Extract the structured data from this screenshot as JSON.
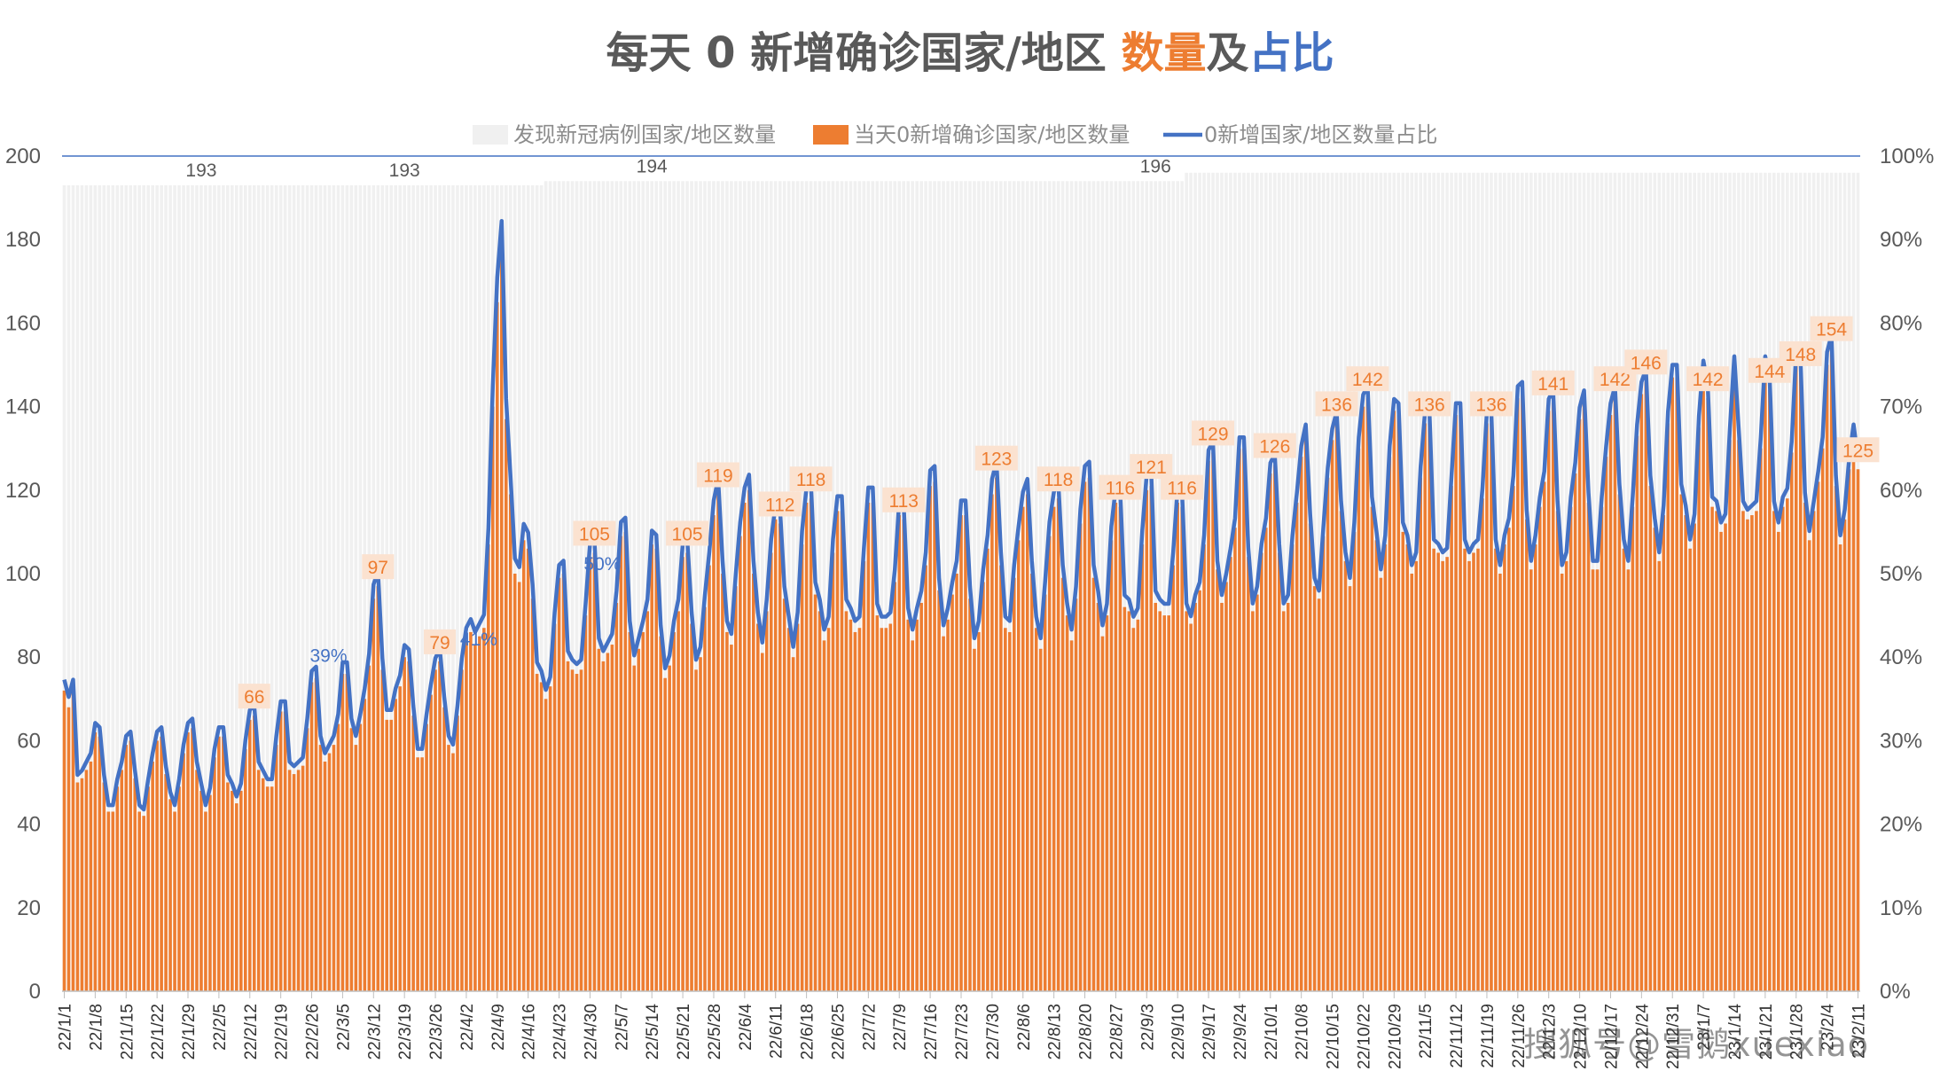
{
  "watermark": "搜狐号@雪鹅xuexiao",
  "colors": {
    "gray_bar": "#f0f0f0",
    "orange_bar": "#ed7d31",
    "line": "#4472c4",
    "title_main": "#595959",
    "title_orange": "#ed7d31",
    "title_blue": "#4472c4",
    "axis_text": "#595959"
  },
  "chart_data": {
    "type": "bar",
    "title_parts": [
      {
        "text": "每天 0 新增确诊国家/地区 ",
        "color": "#595959"
      },
      {
        "text": "数量",
        "color": "#ed7d31"
      },
      {
        "text": "及",
        "color": "#595959"
      },
      {
        "text": "占比",
        "color": "#4472c4"
      }
    ],
    "legend_position": "top",
    "grid": false,
    "y_left": {
      "min": 0,
      "max": 200,
      "ticks": [
        "0",
        "20",
        "40",
        "60",
        "80",
        "100",
        "120",
        "140",
        "160",
        "180",
        "200"
      ]
    },
    "y_right": {
      "min": 0,
      "max": 1,
      "ticks": [
        "0%",
        "10%",
        "20%",
        "30%",
        "40%",
        "50%",
        "60%",
        "70%",
        "80%",
        "90%",
        "100%"
      ]
    },
    "x_start": "2022-01-01",
    "x_end": "2023-01-01",
    "x_tick_labels": [
      "22/1/1",
      "22/1/8",
      "22/1/15",
      "22/1/22",
      "22/1/29",
      "22/2/5",
      "22/2/12",
      "22/2/19",
      "22/2/26",
      "22/3/5",
      "22/3/12",
      "22/3/19",
      "22/3/26",
      "22/4/2",
      "22/4/9",
      "22/4/16",
      "22/4/23",
      "22/4/30",
      "22/5/7",
      "22/5/14",
      "22/5/21",
      "22/5/28",
      "22/6/4",
      "22/6/11",
      "22/6/18",
      "22/6/25",
      "22/7/2",
      "22/7/9",
      "22/7/16",
      "22/7/23",
      "22/7/30",
      "22/8/6",
      "22/8/13",
      "22/8/20",
      "22/8/27",
      "22/9/3",
      "22/9/10",
      "22/9/17",
      "22/9/24",
      "22/10/1",
      "22/10/8",
      "22/10/15",
      "22/10/22",
      "22/10/29",
      "22/11/5",
      "22/11/12",
      "22/11/19",
      "22/11/26",
      "22/12/3",
      "22/12/10",
      "22/12/17",
      "22/12/24",
      "22/12/31",
      "23/1/7",
      "23/1/14",
      "23/1/21",
      "23/1/28",
      "23/2/4",
      "23/2/11"
    ],
    "series": [
      {
        "name": "发现新冠病例国家/地区数量",
        "kind": "bar",
        "color": "#f0f0f0",
        "segments": [
          {
            "from": "2022-01-01",
            "to": "2022-02-28",
            "value": 193
          },
          {
            "from": "2022-03-01",
            "to": "2022-04-19",
            "value": 193
          },
          {
            "from": "2022-04-20",
            "to": "2022-09-11",
            "value": 194
          },
          {
            "from": "2022-09-12",
            "to": "2023-01-01",
            "value": 196
          }
        ],
        "labels": [
          {
            "date": "2022-02-01",
            "text": "193"
          },
          {
            "date": "2022-03-19",
            "text": "193"
          },
          {
            "date": "2022-05-14",
            "text": "194"
          },
          {
            "date": "2022-09-05",
            "text": "196"
          }
        ]
      },
      {
        "name": "当天0新增确诊国家/地区数量",
        "kind": "bar",
        "color": "#ed7d31",
        "weekly_peaks": [
          {
            "date": "2022-01-03",
            "value": 72
          },
          {
            "date": "2022-01-09",
            "value": 61
          },
          {
            "date": "2022-01-16",
            "value": 60
          },
          {
            "date": "2022-01-23",
            "value": 61
          },
          {
            "date": "2022-01-30",
            "value": 63
          },
          {
            "date": "2022-02-06",
            "value": 61
          },
          {
            "date": "2022-02-13",
            "value": 66
          },
          {
            "date": "2022-02-20",
            "value": 67
          },
          {
            "date": "2022-02-27",
            "value": 75
          },
          {
            "date": "2022-03-06",
            "value": 76
          },
          {
            "date": "2022-03-13",
            "value": 97
          },
          {
            "date": "2022-03-20",
            "value": 79
          },
          {
            "date": "2022-03-27",
            "value": 79
          },
          {
            "date": "2022-04-03",
            "value": 86
          },
          {
            "date": "2022-04-10",
            "value": 178
          },
          {
            "date": "2022-04-17",
            "value": 94
          },
          {
            "date": "2022-04-24",
            "value": 100
          },
          {
            "date": "2022-05-01",
            "value": 105
          },
          {
            "date": "2022-05-08",
            "value": 110
          },
          {
            "date": "2022-05-15",
            "value": 106
          },
          {
            "date": "2022-05-22",
            "value": 105
          },
          {
            "date": "2022-05-29",
            "value": 119
          },
          {
            "date": "2022-06-05",
            "value": 120
          },
          {
            "date": "2022-06-12",
            "value": 112
          },
          {
            "date": "2022-06-19",
            "value": 118
          },
          {
            "date": "2022-06-26",
            "value": 115
          },
          {
            "date": "2022-07-03",
            "value": 117
          },
          {
            "date": "2022-07-10",
            "value": 113
          },
          {
            "date": "2022-07-17",
            "value": 122
          },
          {
            "date": "2022-07-24",
            "value": 114
          },
          {
            "date": "2022-07-31",
            "value": 123
          },
          {
            "date": "2022-08-07",
            "value": 119
          },
          {
            "date": "2022-08-14",
            "value": 118
          },
          {
            "date": "2022-08-21",
            "value": 123
          },
          {
            "date": "2022-08-28",
            "value": 116
          },
          {
            "date": "2022-09-04",
            "value": 121
          },
          {
            "date": "2022-09-11",
            "value": 116
          },
          {
            "date": "2022-09-18",
            "value": 129
          },
          {
            "date": "2022-09-25",
            "value": 130
          },
          {
            "date": "2022-10-02",
            "value": 126
          },
          {
            "date": "2022-10-09",
            "value": 133
          },
          {
            "date": "2022-10-16",
            "value": 136
          },
          {
            "date": "2022-10-23",
            "value": 142
          },
          {
            "date": "2022-10-30",
            "value": 138
          },
          {
            "date": "2022-11-06",
            "value": 136
          },
          {
            "date": "2022-11-13",
            "value": 138
          },
          {
            "date": "2022-11-20",
            "value": 136
          },
          {
            "date": "2022-11-27",
            "value": 143
          },
          {
            "date": "2022-12-04",
            "value": 141
          },
          {
            "date": "2022-12-11",
            "value": 141
          },
          {
            "date": "2022-12-18",
            "value": 142
          },
          {
            "date": "2022-12-25",
            "value": 146
          },
          {
            "date": "2023-01-01",
            "value": 147
          }
        ],
        "labels": [
          {
            "date": "2022-02-13",
            "text": "66"
          },
          {
            "date": "2022-03-13",
            "text": "97"
          },
          {
            "date": "2022-03-27",
            "text": "79"
          },
          {
            "date": "2022-05-01",
            "text": "105"
          },
          {
            "date": "2022-05-22",
            "text": "105"
          },
          {
            "date": "2022-05-29",
            "text": "119"
          },
          {
            "date": "2022-06-12",
            "text": "112"
          },
          {
            "date": "2022-06-19",
            "text": "118"
          },
          {
            "date": "2022-07-10",
            "text": "113"
          },
          {
            "date": "2022-07-31",
            "text": "123"
          },
          {
            "date": "2022-08-14",
            "text": "118"
          },
          {
            "date": "2022-08-28",
            "text": "116"
          },
          {
            "date": "2022-09-04",
            "text": "121"
          },
          {
            "date": "2022-09-11",
            "text": "116"
          },
          {
            "date": "2022-09-18",
            "text": "129"
          },
          {
            "date": "2022-10-02",
            "text": "126"
          },
          {
            "date": "2022-10-16",
            "text": "136"
          },
          {
            "date": "2022-10-23",
            "text": "142"
          },
          {
            "date": "2022-11-06",
            "text": "136"
          },
          {
            "date": "2022-11-20",
            "text": "136"
          },
          {
            "date": "2022-12-04",
            "text": "141"
          },
          {
            "date": "2022-12-18",
            "text": "142"
          },
          {
            "date": "2022-12-25",
            "text": "146"
          },
          {
            "date": "2023-01-08",
            "text": "142"
          },
          {
            "date": "2023-01-22",
            "text": "144"
          },
          {
            "date": "2023-01-29",
            "text": "148"
          },
          {
            "date": "2023-02-05",
            "text": "154"
          },
          {
            "date": "2023-02-11",
            "text": "125"
          }
        ]
      },
      {
        "name": "0新增国家/地区数量占比",
        "kind": "line",
        "color": "#4472c4",
        "labels": [
          {
            "date": "2022-02-27",
            "text": "39%"
          },
          {
            "date": "2022-04-02",
            "text": "41%"
          },
          {
            "date": "2022-04-30",
            "text": "50%"
          }
        ]
      }
    ]
  }
}
